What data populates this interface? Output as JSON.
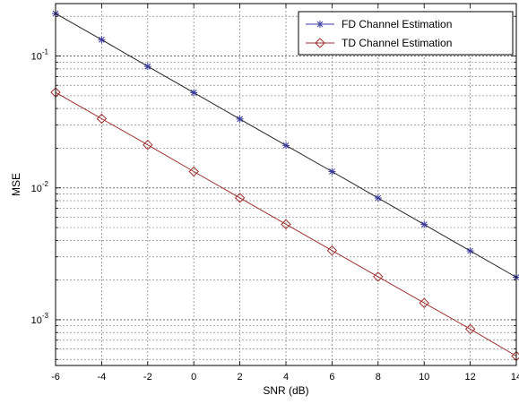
{
  "chart_data": {
    "type": "line",
    "xlabel": "SNR (dB)",
    "ylabel": "MSE",
    "xlim": [
      -6,
      14
    ],
    "ylim": [
      0.00045,
      0.25
    ],
    "yscale": "log",
    "grid": true,
    "legend_position": "top-right",
    "x": [
      -6,
      -4,
      -2,
      0,
      2,
      4,
      6,
      8,
      10,
      12,
      14
    ],
    "x_ticks": [
      "-6",
      "-4",
      "-2",
      "0",
      "2",
      "4",
      "6",
      "8",
      "10",
      "12",
      "14"
    ],
    "y_ticks": [
      {
        "base": "10",
        "exp": "-1",
        "value": 0.1
      },
      {
        "base": "10",
        "exp": "-2",
        "value": 0.01
      },
      {
        "base": "10",
        "exp": "-3",
        "value": 0.001
      }
    ],
    "series": [
      {
        "name": "FD Channel Estimation",
        "color": "#3a3aa0",
        "marker": "star",
        "values": [
          0.21,
          0.133,
          0.0835,
          0.0528,
          0.0333,
          0.021,
          0.0133,
          0.00838,
          0.00528,
          0.00333,
          0.0021
        ]
      },
      {
        "name": "TD Channel Estimation",
        "color": "#a03030",
        "marker": "diamond",
        "values": [
          0.053,
          0.0335,
          0.0212,
          0.0133,
          0.0084,
          0.0053,
          0.00335,
          0.00212,
          0.00134,
          0.00085,
          0.00053
        ]
      }
    ]
  }
}
